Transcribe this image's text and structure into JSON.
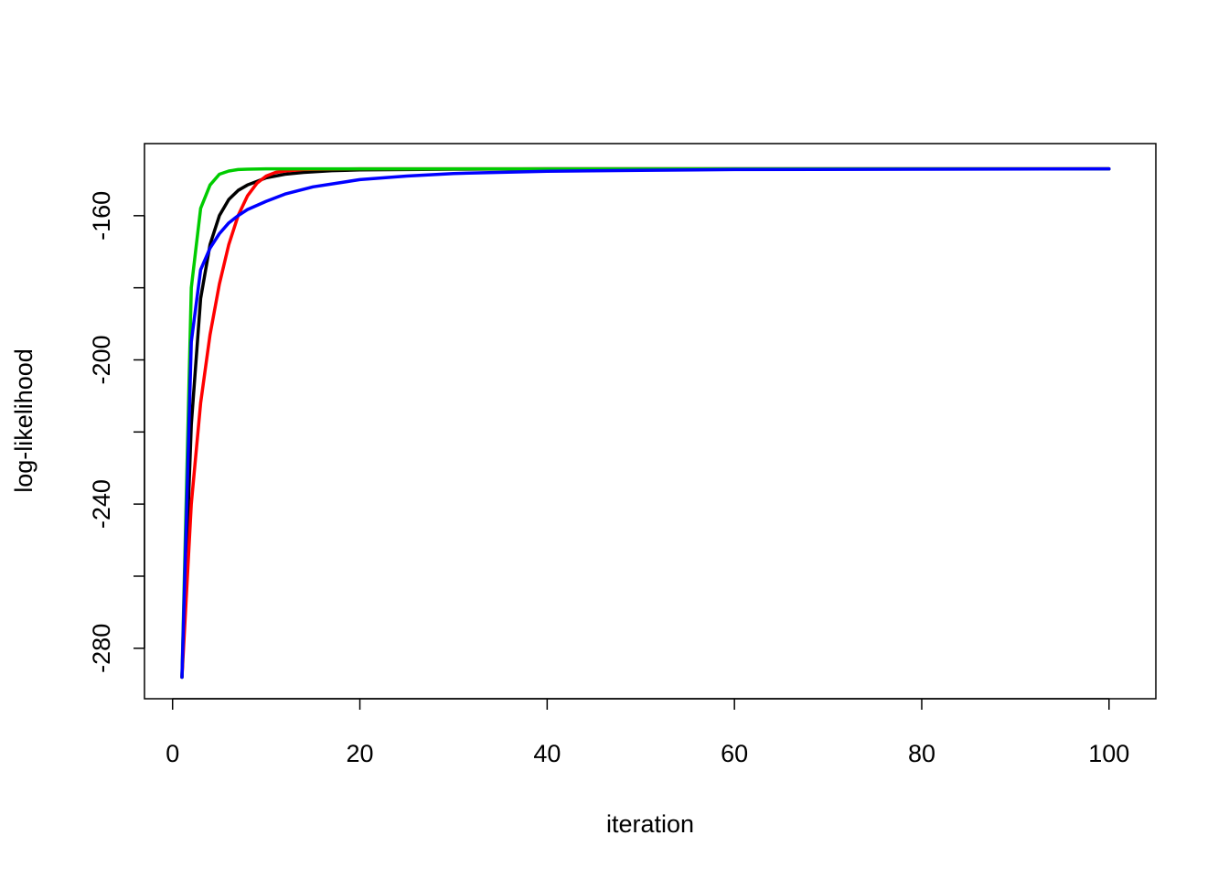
{
  "chart_data": {
    "type": "line",
    "title": "",
    "xlabel": "iteration",
    "ylabel": "log-likelihood",
    "xlim": [
      -3,
      105
    ],
    "ylim": [
      -294,
      -140
    ],
    "xticks": [
      0,
      20,
      40,
      60,
      80,
      100
    ],
    "xtick_labels": [
      "0",
      "20",
      "40",
      "60",
      "80",
      "100"
    ],
    "yticks": [
      -280,
      -260,
      -240,
      -220,
      -200,
      -180,
      -160
    ],
    "ytick_labels": [
      "-280",
      "",
      "-240",
      "",
      "-200",
      "",
      "-160"
    ],
    "grid": false,
    "legend": "none",
    "series": [
      {
        "color": "#000000",
        "x": [
          1,
          2,
          3,
          4,
          5,
          6,
          7,
          8,
          9,
          10,
          12,
          14,
          17,
          20,
          25,
          30,
          40,
          50,
          60,
          80,
          100
        ],
        "y": [
          -288,
          -218,
          -183,
          -168,
          -160,
          -155.5,
          -153,
          -151.5,
          -150.5,
          -149.5,
          -148.5,
          -148,
          -147.5,
          -147.3,
          -147.2,
          -147.1,
          -147,
          -147,
          -147,
          -147,
          -147
        ]
      },
      {
        "color": "#ff0000",
        "x": [
          1,
          2,
          3,
          4,
          5,
          6,
          7,
          8,
          9,
          10,
          11,
          12,
          14,
          16,
          20,
          25,
          30,
          40,
          60,
          80,
          100
        ],
        "y": [
          -288,
          -240,
          -212,
          -193,
          -179,
          -168,
          -160,
          -154.5,
          -151,
          -149,
          -148,
          -147.6,
          -147.2,
          -147.1,
          -147,
          -147,
          -147,
          -147,
          -147,
          -147,
          -147
        ]
      },
      {
        "color": "#00cc00",
        "x": [
          1,
          2,
          3,
          4,
          5,
          6,
          7,
          8,
          10,
          12,
          15,
          20,
          30,
          50,
          100
        ],
        "y": [
          -288,
          -180,
          -158,
          -151.5,
          -148.5,
          -147.6,
          -147.2,
          -147.1,
          -147,
          -147,
          -147,
          -147,
          -147,
          -147,
          -147
        ]
      },
      {
        "color": "#0000ff",
        "x": [
          1,
          2,
          3,
          4,
          5,
          6,
          7,
          8,
          10,
          12,
          15,
          20,
          25,
          30,
          40,
          50,
          60,
          80,
          100
        ],
        "y": [
          -288,
          -195,
          -175,
          -169,
          -165,
          -162,
          -160,
          -158.3,
          -156,
          -154,
          -152,
          -150,
          -149,
          -148.3,
          -147.7,
          -147.4,
          -147.2,
          -147.1,
          -147
        ]
      }
    ]
  }
}
